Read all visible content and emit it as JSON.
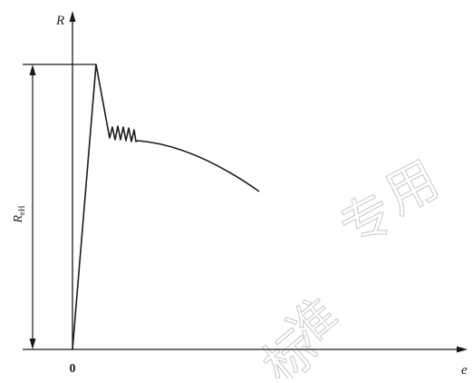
{
  "figure": {
    "axis_y_label": "R",
    "axis_x_label": "e",
    "origin_label": "0",
    "dimension_label_main": "R",
    "dimension_label_sub": "eH"
  },
  "watermark": {
    "chars": [
      "专",
      "用",
      "标",
      "准"
    ]
  },
  "colors": {
    "line": "#1a1a1a",
    "background": "#ffffff",
    "watermark": "#c8c8c8"
  }
}
